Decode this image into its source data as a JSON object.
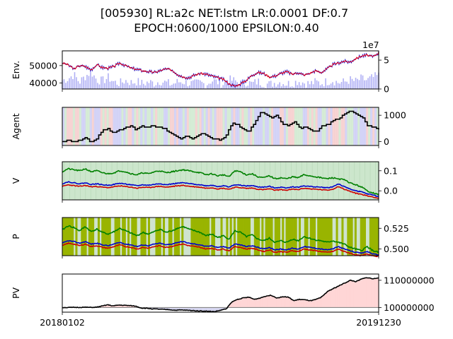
{
  "title_line1": "[005930] RL:a2c NET:lstm LR:0.0001 DF:0.7",
  "title_line2": "EPOCH:0600/1000 EPSILON:0.40",
  "x_tick_labels": [
    "20180102",
    "20191230"
  ],
  "chart_data": [
    {
      "type": "line",
      "name": "env",
      "ylabel": "Env.",
      "left_ticks": [
        "50000",
        "40000"
      ],
      "left_tick_values": [
        50000,
        40000
      ],
      "right_ticks": [
        "5",
        "0"
      ],
      "right_tick_values": [
        5,
        0
      ],
      "right_axis_offset_label": "1e7",
      "ylim_left": [
        36500,
        58500
      ],
      "ylim_right": [
        0,
        6.6
      ],
      "x_range": [
        "20180102",
        "20191230"
      ],
      "series": [
        {
          "role": "close price",
          "color": "#ff0000"
        },
        {
          "role": "price band",
          "color": "#0000cc"
        },
        {
          "role": "volume (bars, right axis)",
          "color": "#b0b0f5"
        }
      ],
      "price_keypoints": [
        51500,
        50500,
        48000,
        50000,
        49500,
        47500,
        50500,
        48800,
        48500,
        49500,
        51500,
        50000,
        48500,
        47800,
        47000,
        46500,
        46000,
        47000,
        48000,
        47500,
        45000,
        43500,
        43000,
        44500,
        45500,
        45000,
        44000,
        43000,
        42000,
        39500,
        38000,
        39500,
        41500,
        44500,
        46000,
        45500,
        43500,
        44000,
        45500,
        46500,
        45000,
        46000,
        44500,
        45500,
        47000,
        46000,
        48000,
        50500,
        51500,
        52500,
        52000,
        54000,
        55500,
        56000,
        55000,
        57500
      ],
      "volume_keypoints": [
        1.5,
        1.8,
        2.5,
        1.2,
        2.2,
        3.0,
        1.6,
        1.4,
        2.0,
        1.2,
        1.0,
        1.5,
        1.1,
        1.3,
        0.9,
        1.2,
        1.0,
        1.4,
        1.1,
        0.8,
        1.2,
        1.3,
        1.0,
        0.9,
        1.1,
        0.8,
        1.5,
        1.2,
        0.9,
        1.6,
        1.4,
        1.0,
        1.2,
        0.9,
        1.3,
        1.0,
        0.8,
        1.1,
        1.2,
        0.9,
        1.0,
        1.4,
        1.1,
        0.9,
        1.2,
        1.0,
        1.3,
        1.5,
        1.1,
        1.2,
        1.6,
        1.3,
        1.8,
        1.5,
        2.0,
        2.3
      ]
    },
    {
      "type": "line",
      "name": "agent",
      "ylabel": "Agent",
      "right_ticks": [
        "1000",
        "0"
      ],
      "right_tick_values": [
        1000,
        0
      ],
      "ylim": [
        -150,
        1300
      ],
      "series": [
        {
          "role": "stock holdings",
          "color": "#000000"
        }
      ],
      "holdings_keypoints": [
        0,
        50,
        0,
        50,
        150,
        0,
        100,
        400,
        500,
        300,
        450,
        500,
        600,
        450,
        600,
        550,
        600,
        550,
        500,
        350,
        200,
        100,
        200,
        100,
        250,
        300,
        150,
        100,
        50,
        250,
        700,
        650,
        450,
        400,
        700,
        1100,
        1050,
        900,
        1000,
        650,
        600,
        750,
        500,
        550,
        450,
        350,
        600,
        650,
        800,
        900,
        1050,
        1150,
        1050,
        950,
        600,
        550,
        450
      ],
      "background_bands": [
        "action shading (buy / sell / hold)"
      ]
    },
    {
      "type": "line",
      "name": "value",
      "ylabel": "V",
      "right_ticks": [
        "0.1",
        "0.0"
      ],
      "right_tick_values": [
        0.1,
        0.0
      ],
      "ylim": [
        -0.045,
        0.145
      ],
      "series": [
        {
          "role": "action value (upper)",
          "color": "#008000"
        },
        {
          "role": "action value (middle)",
          "color": "#0000cc"
        },
        {
          "role": "action value (lower)",
          "color": "#cc0000"
        }
      ],
      "green_keypoints": [
        0.095,
        0.11,
        0.105,
        0.1,
        0.11,
        0.095,
        0.1,
        0.09,
        0.085,
        0.09,
        0.1,
        0.095,
        0.085,
        0.08,
        0.09,
        0.085,
        0.095,
        0.1,
        0.09,
        0.095,
        0.1,
        0.105,
        0.1,
        0.095,
        0.09,
        0.08,
        0.085,
        0.075,
        0.08,
        0.07,
        0.1,
        0.095,
        0.08,
        0.085,
        0.07,
        0.065,
        0.075,
        0.06,
        0.065,
        0.06,
        0.07,
        0.065,
        0.08,
        0.075,
        0.07,
        0.065,
        0.06,
        0.065,
        0.06,
        0.055,
        0.04,
        0.03,
        0.02,
        0.0,
        -0.01,
        -0.02
      ],
      "blue_keypoints": [
        0.035,
        0.045,
        0.04,
        0.035,
        0.04,
        0.032,
        0.035,
        0.03,
        0.028,
        0.032,
        0.038,
        0.034,
        0.03,
        0.025,
        0.03,
        0.028,
        0.032,
        0.036,
        0.03,
        0.034,
        0.038,
        0.04,
        0.036,
        0.033,
        0.03,
        0.025,
        0.028,
        0.022,
        0.025,
        0.02,
        0.03,
        0.028,
        0.024,
        0.026,
        0.02,
        0.018,
        0.022,
        0.015,
        0.018,
        0.015,
        0.02,
        0.018,
        0.025,
        0.022,
        0.02,
        0.018,
        0.015,
        0.02,
        0.035,
        0.02,
        0.01,
        0.0,
        -0.005,
        -0.015,
        -0.02,
        -0.03
      ],
      "red_keypoints": [
        0.022,
        0.03,
        0.026,
        0.022,
        0.027,
        0.02,
        0.022,
        0.018,
        0.016,
        0.02,
        0.025,
        0.021,
        0.018,
        0.013,
        0.018,
        0.016,
        0.02,
        0.023,
        0.018,
        0.021,
        0.025,
        0.027,
        0.023,
        0.02,
        0.018,
        0.013,
        0.016,
        0.01,
        0.013,
        0.008,
        0.018,
        0.016,
        0.012,
        0.014,
        0.008,
        0.006,
        0.01,
        0.003,
        0.006,
        0.003,
        0.008,
        0.006,
        0.013,
        0.01,
        0.008,
        0.006,
        0.003,
        0.008,
        0.022,
        0.008,
        -0.002,
        -0.012,
        -0.017,
        -0.025,
        -0.03,
        -0.038
      ]
    },
    {
      "type": "line",
      "name": "policy",
      "ylabel": "P",
      "right_ticks": [
        "0.525",
        "0.500"
      ],
      "right_tick_values": [
        0.525,
        0.5
      ],
      "ylim": [
        0.492,
        0.538
      ],
      "series": [
        {
          "role": "policy (upper)",
          "color": "#008000"
        },
        {
          "role": "policy (middle)",
          "color": "#0000cc"
        },
        {
          "role": "policy (lower)",
          "color": "#cc0000"
        }
      ],
      "green_keypoints": [
        0.523,
        0.528,
        0.526,
        0.522,
        0.527,
        0.521,
        0.524,
        0.52,
        0.518,
        0.521,
        0.525,
        0.522,
        0.519,
        0.516,
        0.52,
        0.518,
        0.521,
        0.524,
        0.52,
        0.522,
        0.525,
        0.527,
        0.524,
        0.522,
        0.52,
        0.516,
        0.518,
        0.514,
        0.516,
        0.512,
        0.522,
        0.52,
        0.515,
        0.517,
        0.512,
        0.51,
        0.513,
        0.508,
        0.51,
        0.508,
        0.512,
        0.51,
        0.515,
        0.513,
        0.511,
        0.51,
        0.508,
        0.51,
        0.508,
        0.506,
        0.502,
        0.5,
        0.498,
        0.503,
        0.498,
        0.496
      ],
      "blue_keypoints": [
        0.507,
        0.51,
        0.509,
        0.507,
        0.509,
        0.506,
        0.507,
        0.505,
        0.504,
        0.506,
        0.508,
        0.506,
        0.505,
        0.503,
        0.505,
        0.504,
        0.506,
        0.507,
        0.505,
        0.506,
        0.508,
        0.509,
        0.507,
        0.506,
        0.505,
        0.503,
        0.504,
        0.502,
        0.503,
        0.501,
        0.506,
        0.505,
        0.503,
        0.504,
        0.502,
        0.5,
        0.502,
        0.499,
        0.5,
        0.499,
        0.501,
        0.5,
        0.503,
        0.502,
        0.501,
        0.5,
        0.499,
        0.5,
        0.503,
        0.5,
        0.498,
        0.496,
        0.495,
        0.497,
        0.494,
        0.493
      ],
      "red_keypoints": [
        0.504,
        0.507,
        0.506,
        0.504,
        0.506,
        0.503,
        0.504,
        0.502,
        0.501,
        0.503,
        0.505,
        0.503,
        0.502,
        0.5,
        0.502,
        0.501,
        0.503,
        0.504,
        0.502,
        0.503,
        0.505,
        0.506,
        0.504,
        0.503,
        0.502,
        0.5,
        0.501,
        0.499,
        0.5,
        0.498,
        0.503,
        0.502,
        0.5,
        0.501,
        0.499,
        0.497,
        0.499,
        0.496,
        0.497,
        0.496,
        0.498,
        0.497,
        0.5,
        0.499,
        0.498,
        0.497,
        0.496,
        0.497,
        0.5,
        0.497,
        0.495,
        0.493,
        0.492,
        0.494,
        0.492,
        0.491
      ],
      "background_bands": [
        "exploration shading"
      ]
    },
    {
      "type": "area",
      "name": "portfolio-value",
      "ylabel": "PV",
      "right_ticks": [
        "110000000",
        "100000000"
      ],
      "right_tick_values": [
        110000000,
        100000000
      ],
      "baseline": 100000000,
      "ylim": [
        98300000,
        112300000
      ],
      "series": [
        {
          "role": "portfolio value",
          "color": "#000000"
        }
      ],
      "fill_above_color": "#ffd6d6",
      "fill_below_color": "#d6d6f0",
      "pv_keypoints": [
        100000000,
        100000000,
        100050000,
        100050000,
        100100000,
        100050000,
        100100000,
        100500000,
        101000000,
        100600000,
        100900000,
        100800000,
        100700000,
        100500000,
        99800000,
        99700000,
        99500000,
        99400000,
        99300000,
        99200000,
        99000000,
        99100000,
        99000000,
        98900000,
        98800000,
        98700000,
        98600000,
        98500000,
        99000000,
        99500000,
        102000000,
        103000000,
        103500000,
        103800000,
        103000000,
        103500000,
        104200000,
        104500000,
        103500000,
        104000000,
        103800000,
        102500000,
        103000000,
        102800000,
        102500000,
        103000000,
        104000000,
        106000000,
        107000000,
        108000000,
        109000000,
        110000000,
        109500000,
        110500000,
        111000000,
        110500000,
        111000000
      ]
    }
  ]
}
